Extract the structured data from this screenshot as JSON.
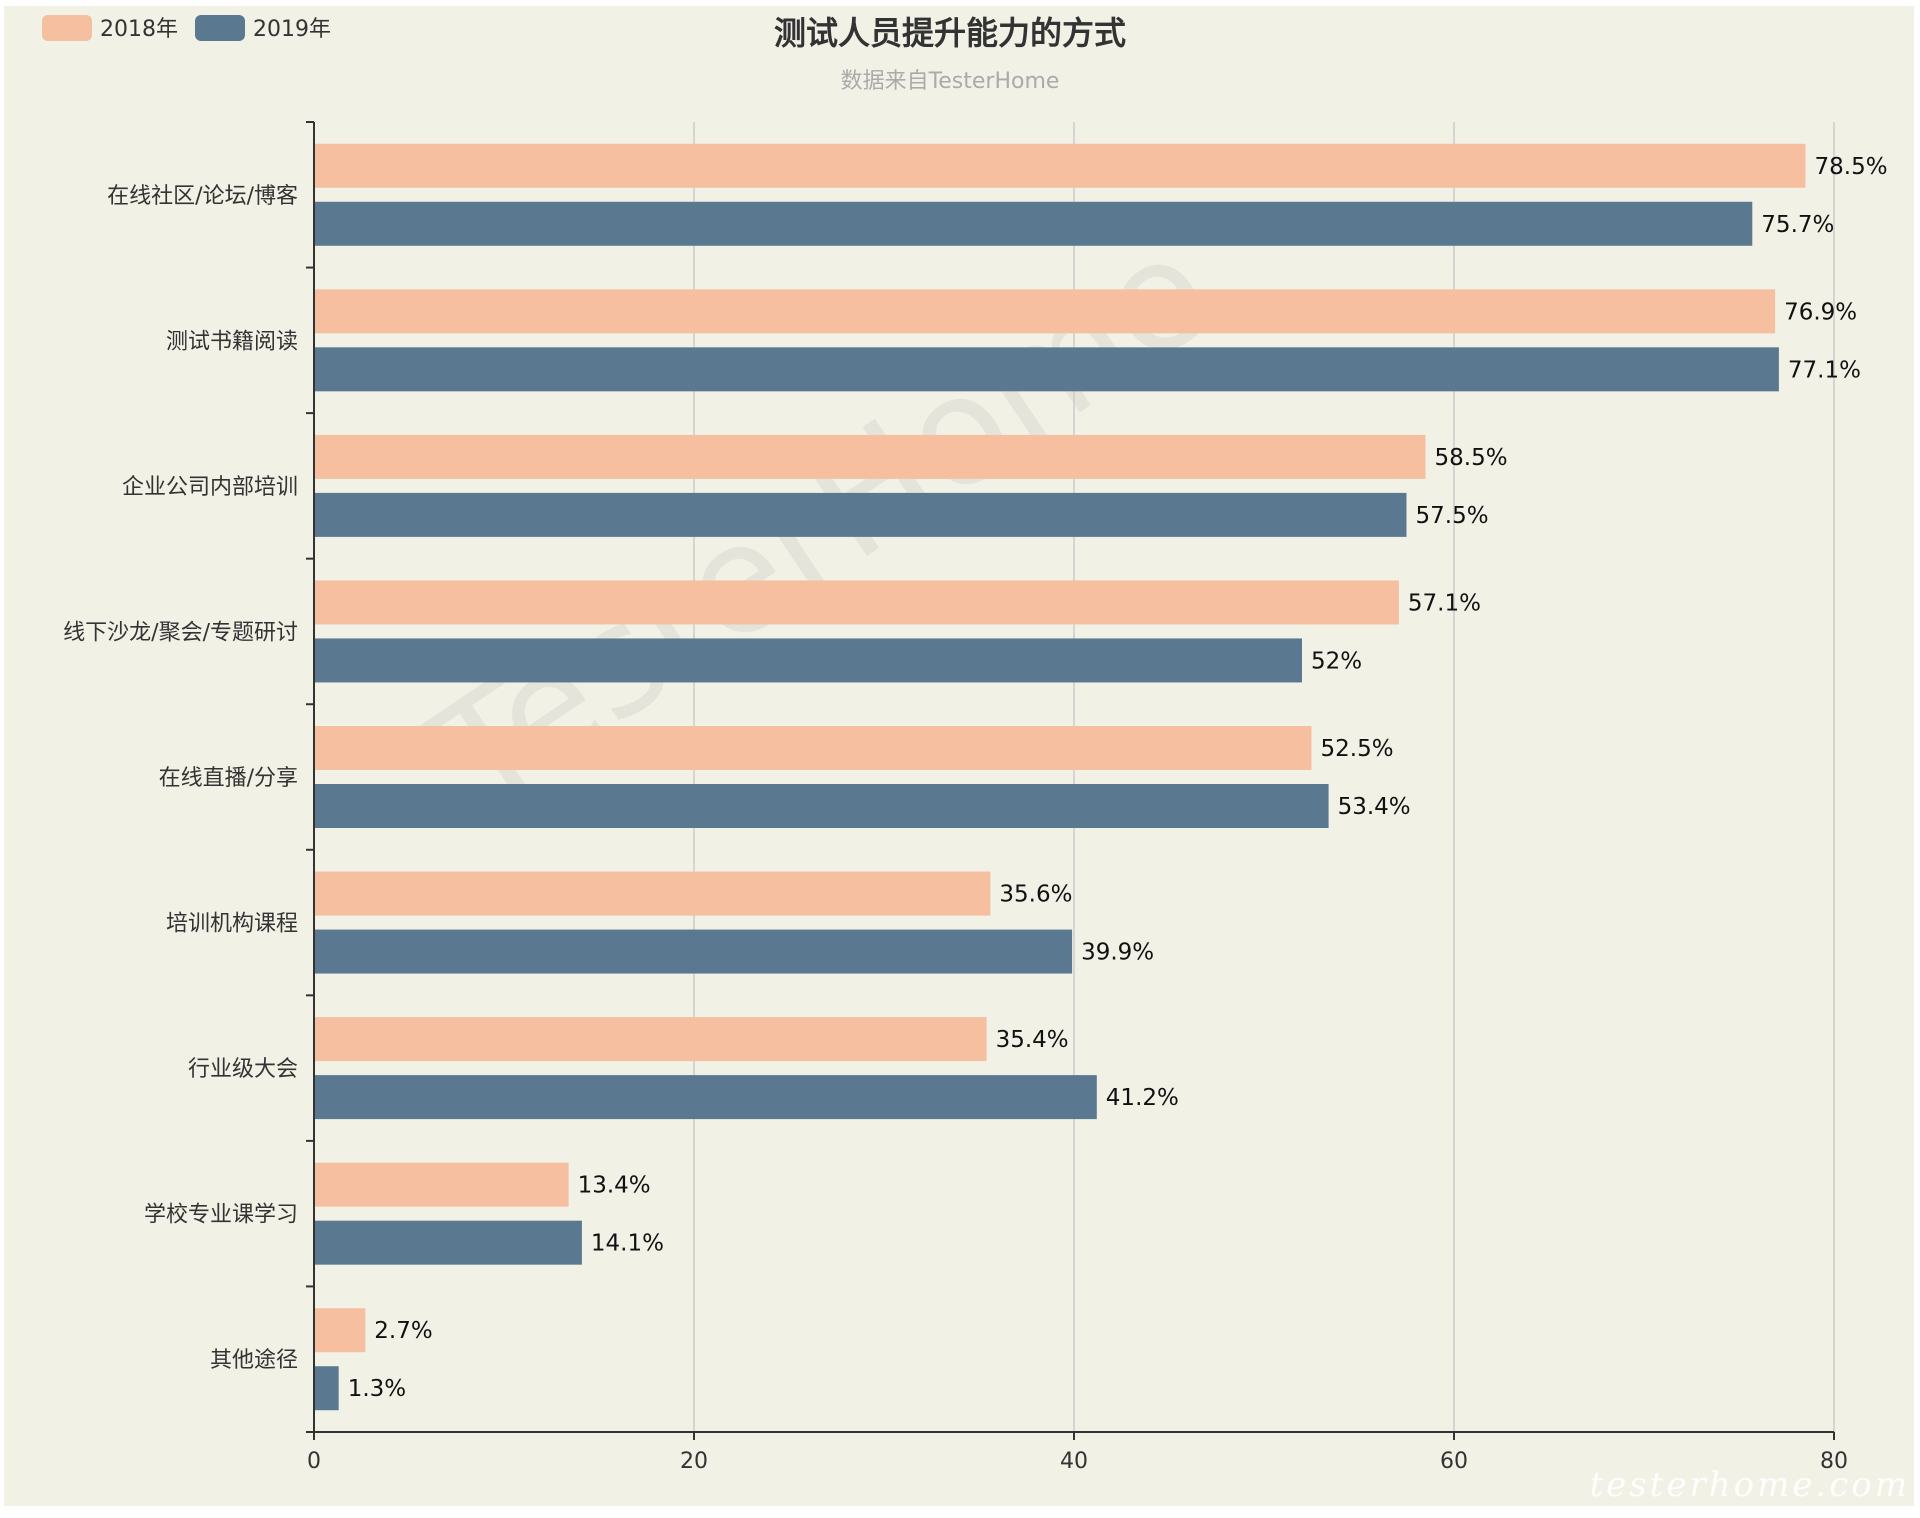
{
  "chart_data": {
    "type": "bar",
    "orientation": "horizontal",
    "title": "测试人员提升能力的方式",
    "subtitle": "数据来自TesterHome",
    "watermark": "TesterHome",
    "corner_watermark": "testerhome.com",
    "categories": [
      "在线社区/论坛/博客",
      "测试书籍阅读",
      "企业公司内部培训",
      "线下沙龙/聚会/专题研讨",
      "在线直播/分享",
      "培训机构课程",
      "行业级大会",
      "学校专业课学习",
      "其他途径"
    ],
    "series": [
      {
        "name": "2018年",
        "color": "#f5bfa0",
        "values": [
          78.5,
          76.9,
          58.5,
          57.1,
          52.5,
          35.6,
          35.4,
          13.4,
          2.7
        ],
        "labels": [
          "78.5%",
          "76.9%",
          "58.5%",
          "57.1%",
          "52.5%",
          "35.6%",
          "35.4%",
          "13.4%",
          "2.7%"
        ]
      },
      {
        "name": "2019年",
        "color": "#5b7891",
        "values": [
          75.7,
          77.1,
          57.5,
          52,
          53.4,
          39.9,
          41.2,
          14.1,
          1.3
        ],
        "labels": [
          "75.7%",
          "77.1%",
          "57.5%",
          "52%",
          "53.4%",
          "39.9%",
          "41.2%",
          "14.1%",
          "1.3%"
        ]
      }
    ],
    "x_ticks": [
      "0",
      "20",
      "40",
      "60",
      "80"
    ],
    "xlim": [
      0,
      80
    ],
    "grid": true,
    "legend": "top-left",
    "background": "#f2f1e6",
    "axis_color": "#333333",
    "grid_color": "#cccccc"
  }
}
